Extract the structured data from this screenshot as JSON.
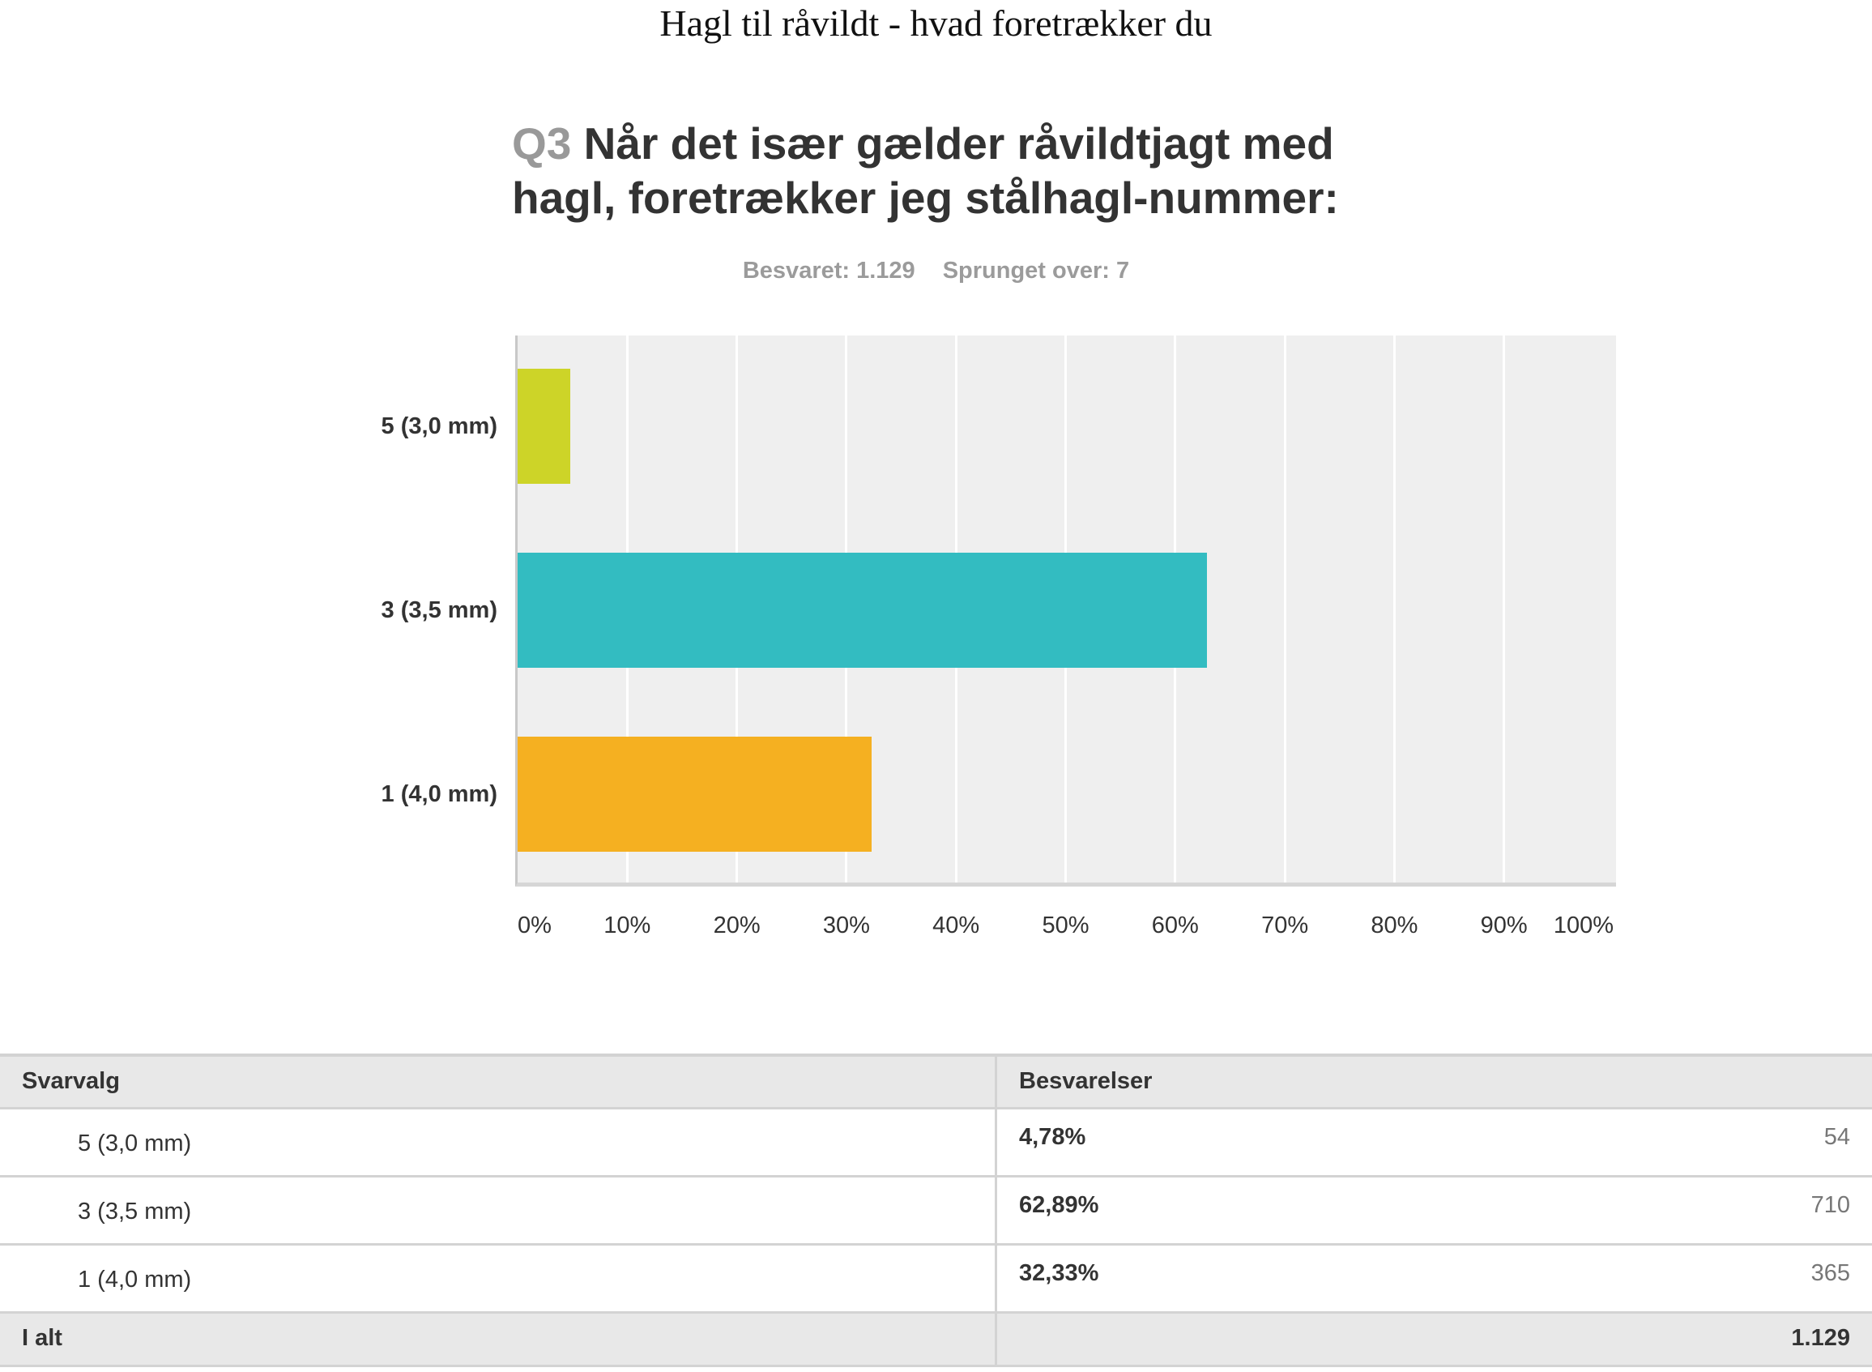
{
  "document_title": "Hagl til råvildt - hvad foretrækker du",
  "question": {
    "number": "Q3",
    "text_line1": "Når det især gælder råvildtjagt med",
    "text_line2": "hagl, foretrækker jeg stålhagl-nummer:"
  },
  "stats": {
    "answered": "Besvaret: 1.129",
    "skipped": "Sprunget over: 7"
  },
  "chart_data": {
    "type": "bar",
    "orientation": "horizontal",
    "title": "Q3 Når det især gælder råvildtjagt med hagl, foretrækker jeg stålhagl-nummer:",
    "categories": [
      "5 (3,0 mm)",
      "3 (3,5 mm)",
      "1 (4,0 mm)"
    ],
    "values": [
      4.78,
      62.89,
      32.33
    ],
    "colors": [
      "#cdd428",
      "#33bcc1",
      "#f5b021"
    ],
    "xlabel": "",
    "ylabel": "",
    "xlim": [
      0,
      100
    ],
    "x_ticks": [
      "0%",
      "10%",
      "20%",
      "30%",
      "40%",
      "50%",
      "60%",
      "70%",
      "80%",
      "90%",
      "100%"
    ],
    "grid": true,
    "legend": "none"
  },
  "table": {
    "headers": [
      "Svarvalg",
      "Besvarelser"
    ],
    "rows": [
      {
        "label": "5 (3,0 mm)",
        "percent": "4,78%",
        "count": "54"
      },
      {
        "label": "3 (3,5 mm)",
        "percent": "62,89%",
        "count": "710"
      },
      {
        "label": "1 (4,0 mm)",
        "percent": "32,33%",
        "count": "365"
      }
    ],
    "total_label": "I alt",
    "total_value": "1.129"
  }
}
